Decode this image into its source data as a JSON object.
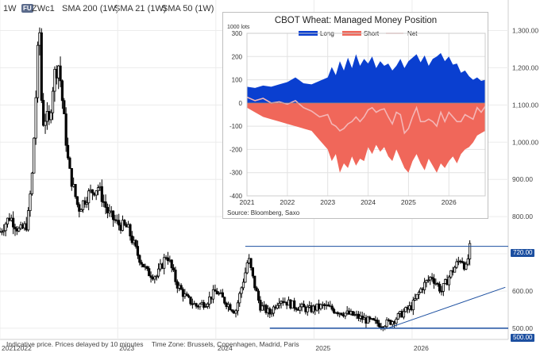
{
  "header": {
    "timeframe": "1W",
    "badge": "FU",
    "symbol": "ZWc1",
    "sma200": "SMA 200 (1W)",
    "sma21": "SMA 21 (1W)",
    "sma50": "SMA 50 (1W)"
  },
  "footer": {
    "note": "Indicative price. Prices delayed by 10 minutes",
    "timezone": "Time Zone: Brussels, Copenhagen, Madrid, Paris"
  },
  "colors": {
    "candles": "#000000",
    "trendline": "#1c4fa0",
    "tag": "#1c4fa0",
    "long": "#0a3fd0",
    "short": "#f0675a",
    "net": "#f4b6b6"
  },
  "chart_data": [
    {
      "type": "candlestick",
      "symbol": "ZWc1",
      "interval": "1W",
      "y_axis_side": "right",
      "yticks": [
        "1,300.00",
        "1,200.00",
        "1,100.00",
        "1,000.00",
        "900.00",
        "800.00",
        "700.00",
        "600.00",
        "500.00"
      ],
      "y_ticks_values": [
        1300,
        1200,
        1100,
        1000,
        900,
        800,
        700,
        600,
        500
      ],
      "ylim": [
        470,
        1350
      ],
      "x_labels": [
        "20212022",
        "2023",
        "2024",
        "2025",
        "2026"
      ],
      "price_labels": [
        "720.00",
        "500.00"
      ],
      "horizontal_levels": [
        720,
        500
      ],
      "approx_close_path": [
        [
          2021.8,
          760
        ],
        [
          2021.9,
          800
        ],
        [
          2022.0,
          760
        ],
        [
          2022.08,
          780
        ],
        [
          2022.13,
          920
        ],
        [
          2022.17,
          1150
        ],
        [
          2022.2,
          1330
        ],
        [
          2022.23,
          1050
        ],
        [
          2022.27,
          1070
        ],
        [
          2022.3,
          1050
        ],
        [
          2022.35,
          1180
        ],
        [
          2022.4,
          1210
        ],
        [
          2022.45,
          1070
        ],
        [
          2022.5,
          930
        ],
        [
          2022.6,
          820
        ],
        [
          2022.7,
          860
        ],
        [
          2022.8,
          880
        ],
        [
          2022.9,
          810
        ],
        [
          2023.0,
          780
        ],
        [
          2023.1,
          770
        ],
        [
          2023.2,
          700
        ],
        [
          2023.3,
          650
        ],
        [
          2023.4,
          640
        ],
        [
          2023.5,
          700
        ],
        [
          2023.6,
          620
        ],
        [
          2023.7,
          580
        ],
        [
          2023.8,
          560
        ],
        [
          2023.9,
          570
        ],
        [
          2024.0,
          600
        ],
        [
          2024.1,
          570
        ],
        [
          2024.2,
          545
        ],
        [
          2024.3,
          650
        ],
        [
          2024.33,
          690
        ],
        [
          2024.38,
          630
        ],
        [
          2024.45,
          560
        ],
        [
          2024.55,
          540
        ],
        [
          2024.65,
          580
        ],
        [
          2024.8,
          560
        ],
        [
          2024.95,
          550
        ],
        [
          2025.1,
          560
        ],
        [
          2025.25,
          545
        ],
        [
          2025.4,
          535
        ],
        [
          2025.55,
          520
        ],
        [
          2025.7,
          510
        ],
        [
          2025.8,
          520
        ],
        [
          2025.9,
          540
        ],
        [
          2026.0,
          560
        ],
        [
          2026.1,
          610
        ],
        [
          2026.2,
          640
        ],
        [
          2026.3,
          600
        ],
        [
          2026.4,
          650
        ],
        [
          2026.5,
          690
        ],
        [
          2026.55,
          660
        ],
        [
          2026.6,
          730
        ]
      ],
      "trendline": [
        [
          2025.75,
          500
        ],
        [
          2026.95,
          610
        ]
      ]
    },
    {
      "type": "area",
      "title": "CBOT Wheat: Managed Money Position",
      "unit_label": "1000 lots",
      "source": "Source: Bloomberg, Saxo",
      "legend": [
        "Long",
        "Short",
        "Net"
      ],
      "legend_position": "top",
      "x": [
        "2021",
        "2022",
        "2023",
        "2024",
        "2025",
        "2026"
      ],
      "x_ticks_values": [
        2021,
        2022,
        2023,
        2024,
        2025,
        2026
      ],
      "yticks": [
        "300",
        "200",
        "100",
        "0",
        "-100",
        "-200",
        "-300",
        "-400"
      ],
      "y_ticks_values": [
        300,
        200,
        100,
        0,
        -100,
        -200,
        -300,
        -400
      ],
      "ylim": [
        -400,
        300
      ],
      "xlim": [
        2021,
        2026.9
      ],
      "series": [
        {
          "name": "Long",
          "kind": "area",
          "points": [
            [
              2021,
              70
            ],
            [
              2021.2,
              65
            ],
            [
              2021.4,
              75
            ],
            [
              2021.6,
              70
            ],
            [
              2021.8,
              80
            ],
            [
              2022,
              90
            ],
            [
              2022.2,
              110
            ],
            [
              2022.4,
              85
            ],
            [
              2022.6,
              80
            ],
            [
              2022.8,
              95
            ],
            [
              2023,
              110
            ],
            [
              2023.1,
              155
            ],
            [
              2023.2,
              120
            ],
            [
              2023.3,
              180
            ],
            [
              2023.4,
              140
            ],
            [
              2023.5,
              195
            ],
            [
              2023.6,
              150
            ],
            [
              2023.7,
              210
            ],
            [
              2023.8,
              160
            ],
            [
              2023.9,
              190
            ],
            [
              2024,
              170
            ],
            [
              2024.1,
              200
            ],
            [
              2024.2,
              150
            ],
            [
              2024.3,
              180
            ],
            [
              2024.4,
              160
            ],
            [
              2024.5,
              170
            ],
            [
              2024.6,
              140
            ],
            [
              2024.7,
              160
            ],
            [
              2024.8,
              190
            ],
            [
              2024.9,
              150
            ],
            [
              2025,
              180
            ],
            [
              2025.1,
              195
            ],
            [
              2025.2,
              210
            ],
            [
              2025.3,
              175
            ],
            [
              2025.4,
              205
            ],
            [
              2025.5,
              160
            ],
            [
              2025.6,
              190
            ],
            [
              2025.7,
              200
            ],
            [
              2025.8,
              215
            ],
            [
              2025.9,
              180
            ],
            [
              2026,
              200
            ],
            [
              2026.1,
              165
            ],
            [
              2026.2,
              170
            ],
            [
              2026.3,
              130
            ],
            [
              2026.4,
              140
            ],
            [
              2026.5,
              115
            ],
            [
              2026.6,
              100
            ],
            [
              2026.7,
              110
            ],
            [
              2026.8,
              95
            ],
            [
              2026.9,
              100
            ]
          ]
        },
        {
          "name": "Short",
          "kind": "area",
          "points": [
            [
              2021,
              -20
            ],
            [
              2021.2,
              -40
            ],
            [
              2021.4,
              -60
            ],
            [
              2021.6,
              -70
            ],
            [
              2021.8,
              -80
            ],
            [
              2022,
              -90
            ],
            [
              2022.2,
              -100
            ],
            [
              2022.4,
              -110
            ],
            [
              2022.6,
              -120
            ],
            [
              2022.8,
              -160
            ],
            [
              2023,
              -200
            ],
            [
              2023.1,
              -250
            ],
            [
              2023.2,
              -220
            ],
            [
              2023.3,
              -300
            ],
            [
              2023.4,
              -260
            ],
            [
              2023.5,
              -280
            ],
            [
              2023.6,
              -230
            ],
            [
              2023.7,
              -270
            ],
            [
              2023.8,
              -240
            ],
            [
              2023.9,
              -250
            ],
            [
              2024,
              -190
            ],
            [
              2024.1,
              -220
            ],
            [
              2024.2,
              -180
            ],
            [
              2024.3,
              -210
            ],
            [
              2024.4,
              -190
            ],
            [
              2024.5,
              -230
            ],
            [
              2024.6,
              -250
            ],
            [
              2024.7,
              -200
            ],
            [
              2024.8,
              -240
            ],
            [
              2024.9,
              -280
            ],
            [
              2025,
              -300
            ],
            [
              2025.1,
              -250
            ],
            [
              2025.2,
              -220
            ],
            [
              2025.3,
              -260
            ],
            [
              2025.4,
              -290
            ],
            [
              2025.5,
              -240
            ],
            [
              2025.6,
              -270
            ],
            [
              2025.7,
              -300
            ],
            [
              2025.8,
              -260
            ],
            [
              2025.9,
              -280
            ],
            [
              2026,
              -250
            ],
            [
              2026.1,
              -230
            ],
            [
              2026.2,
              -260
            ],
            [
              2026.3,
              -220
            ],
            [
              2026.4,
              -200
            ],
            [
              2026.5,
              -190
            ],
            [
              2026.6,
              -170
            ],
            [
              2026.7,
              -140
            ],
            [
              2026.8,
              -130
            ],
            [
              2026.9,
              -120
            ]
          ]
        },
        {
          "name": "Net",
          "kind": "line",
          "points": [
            [
              2021,
              25
            ],
            [
              2021.2,
              10
            ],
            [
              2021.4,
              20
            ],
            [
              2021.6,
              0
            ],
            [
              2021.8,
              5
            ],
            [
              2022,
              -5
            ],
            [
              2022.2,
              10
            ],
            [
              2022.4,
              -20
            ],
            [
              2022.6,
              -35
            ],
            [
              2022.8,
              -60
            ],
            [
              2023,
              -50
            ],
            [
              2023.1,
              -90
            ],
            [
              2023.2,
              -100
            ],
            [
              2023.3,
              -120
            ],
            [
              2023.4,
              -110
            ],
            [
              2023.5,
              -90
            ],
            [
              2023.6,
              -80
            ],
            [
              2023.7,
              -60
            ],
            [
              2023.8,
              -80
            ],
            [
              2023.9,
              -60
            ],
            [
              2024,
              -30
            ],
            [
              2024.1,
              -20
            ],
            [
              2024.2,
              -40
            ],
            [
              2024.3,
              -30
            ],
            [
              2024.4,
              -25
            ],
            [
              2024.5,
              -60
            ],
            [
              2024.6,
              -90
            ],
            [
              2024.7,
              -40
            ],
            [
              2024.8,
              -50
            ],
            [
              2024.9,
              -130
            ],
            [
              2025,
              -110
            ],
            [
              2025.1,
              -60
            ],
            [
              2025.2,
              -20
            ],
            [
              2025.3,
              -80
            ],
            [
              2025.4,
              -80
            ],
            [
              2025.5,
              -70
            ],
            [
              2025.6,
              -80
            ],
            [
              2025.7,
              -100
            ],
            [
              2025.8,
              -40
            ],
            [
              2025.9,
              -80
            ],
            [
              2026,
              -40
            ],
            [
              2026.1,
              -60
            ],
            [
              2026.2,
              -80
            ],
            [
              2026.3,
              -80
            ],
            [
              2026.4,
              -50
            ],
            [
              2026.5,
              -60
            ],
            [
              2026.6,
              -70
            ],
            [
              2026.7,
              -20
            ],
            [
              2026.8,
              -40
            ],
            [
              2026.9,
              -15
            ]
          ]
        }
      ]
    }
  ]
}
